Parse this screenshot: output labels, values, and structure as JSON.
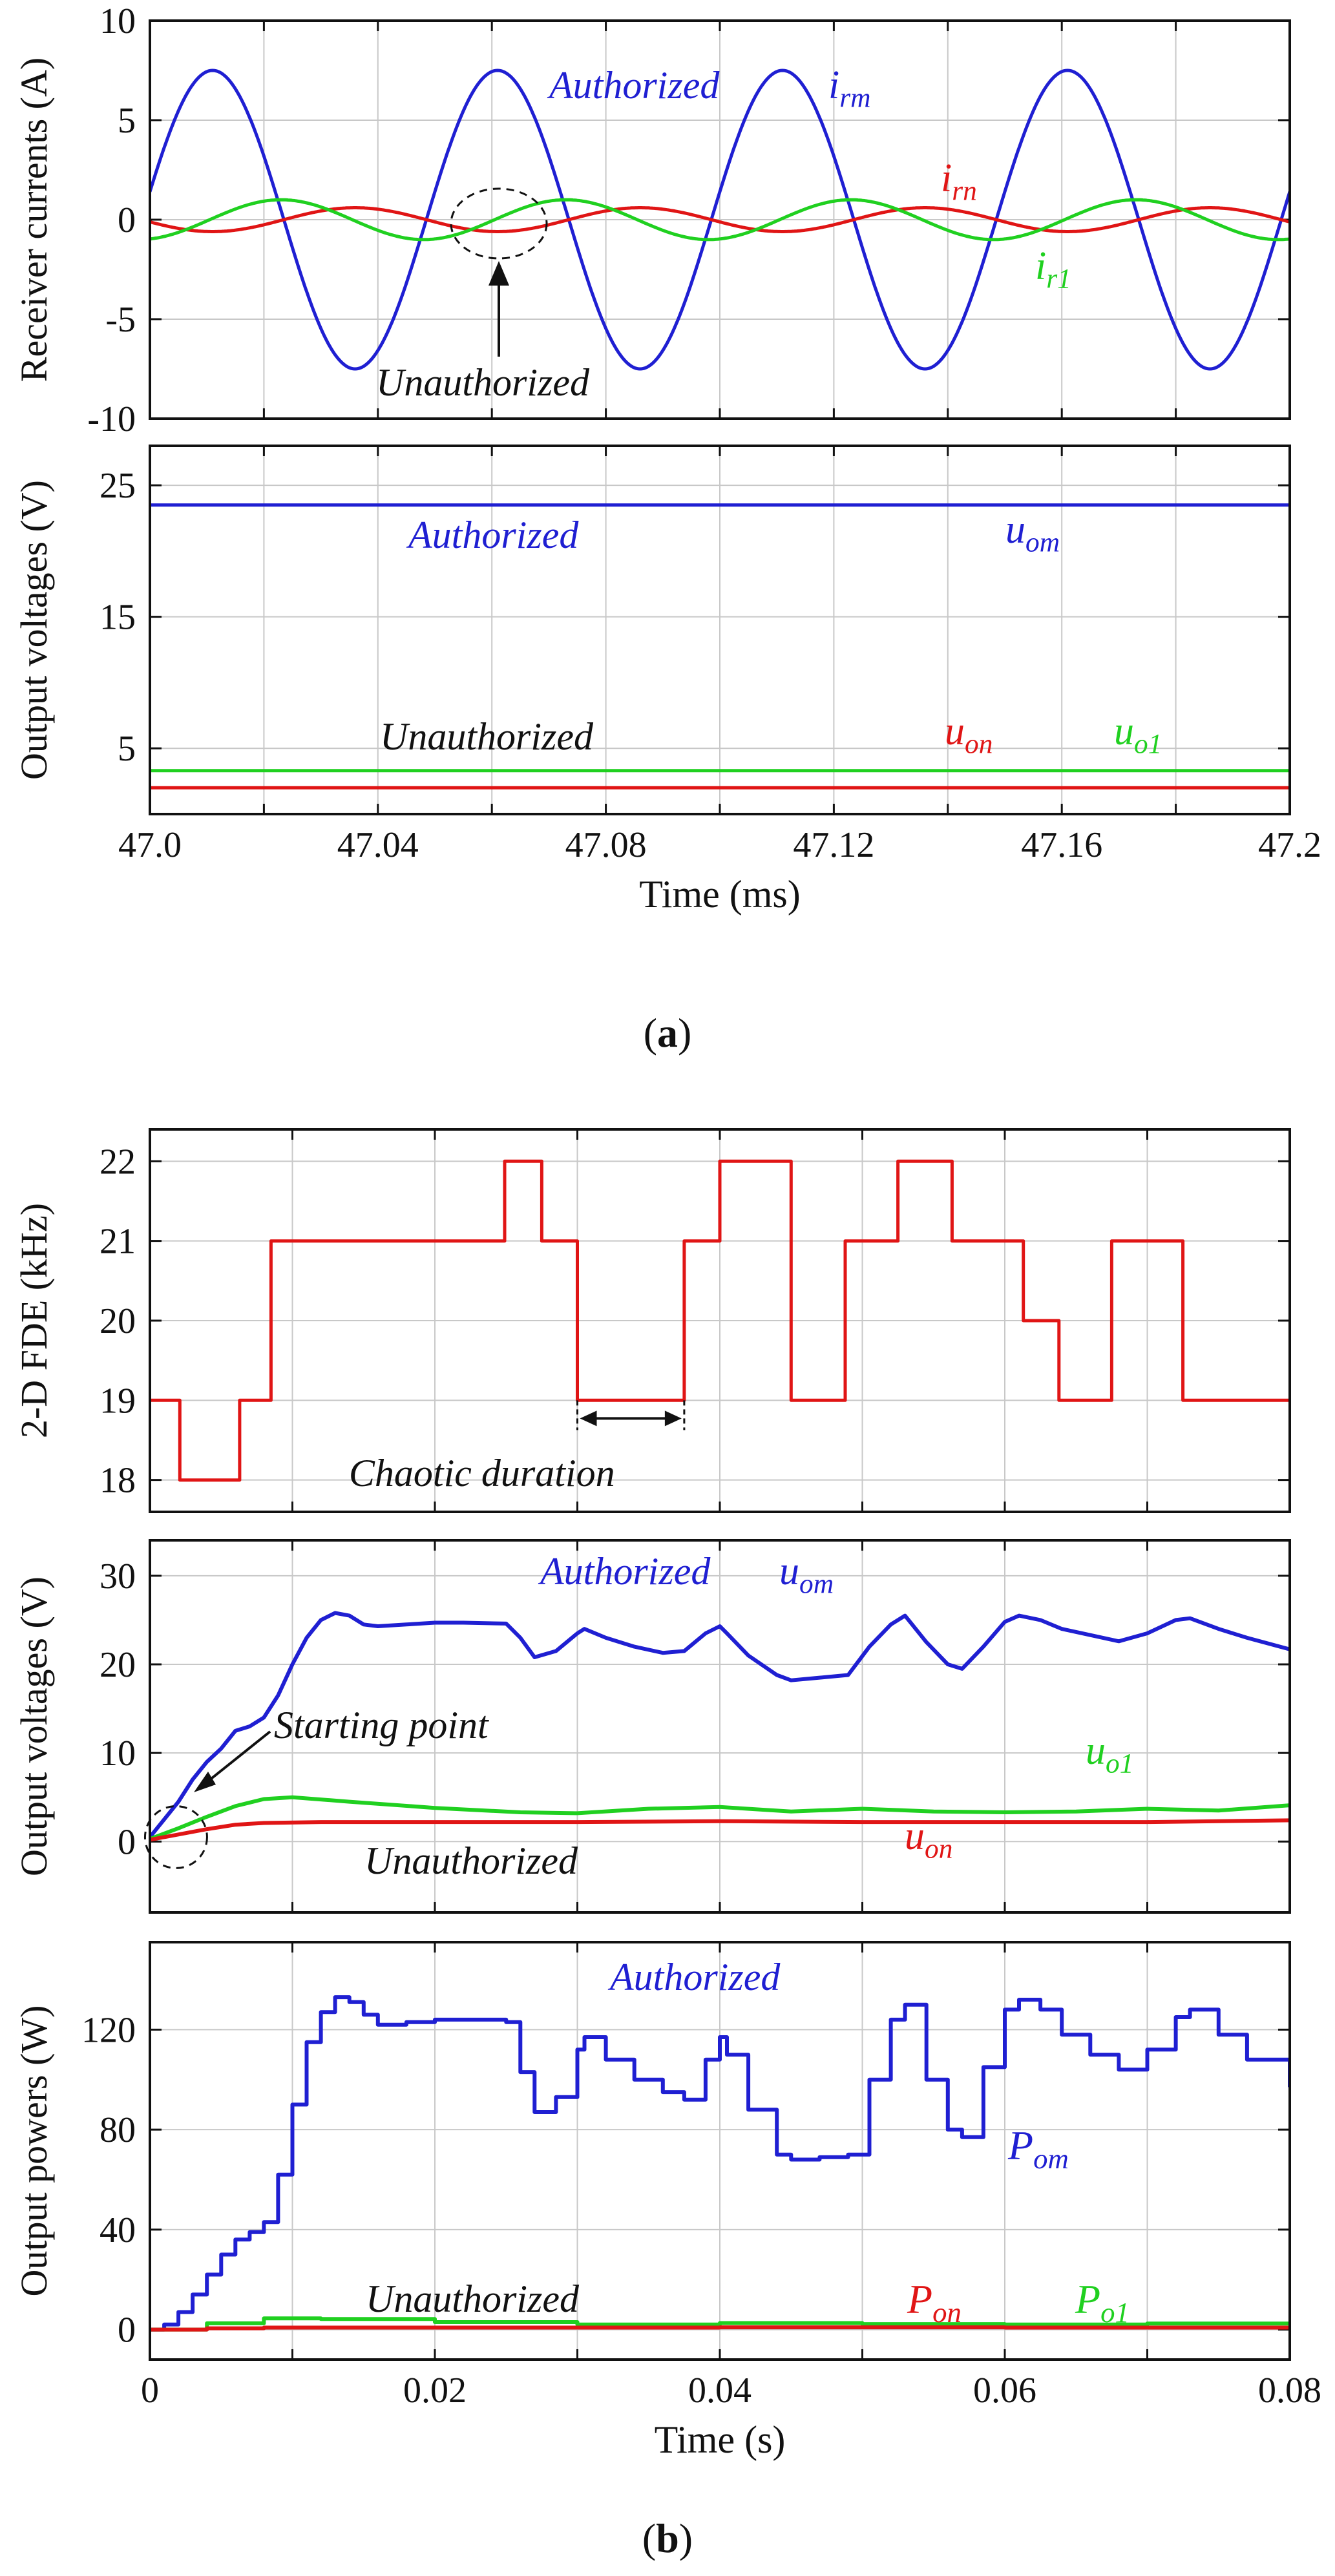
{
  "figure": {
    "label_a": "a",
    "label_b": "b"
  },
  "chart_data": [
    {
      "id": "a1",
      "type": "line",
      "ylabel": "Receiver currents (A)",
      "xlim": [
        47.0,
        47.2
      ],
      "ylim": [
        -10,
        10
      ],
      "yticks": [
        -10,
        -5,
        0,
        5,
        10
      ],
      "ytick_labels": [
        "-10",
        "-5",
        "0",
        "5",
        "10"
      ],
      "grid": true,
      "series": [
        {
          "name": "irm",
          "color": "#1f1fd2",
          "amplitude": 7.5,
          "period_ms": 0.05,
          "peak_at_ms": 47.011,
          "phase_deg": 0
        },
        {
          "name": "irn",
          "color": "#e01515",
          "amplitude": 0.6,
          "period_ms": 0.05,
          "peak_at_ms": 47.036,
          "phase_deg": 0
        },
        {
          "name": "ir1",
          "color": "#20d020",
          "amplitude": 1.0,
          "period_ms": 0.05,
          "peak_at_ms": 47.023,
          "phase_deg": 0
        }
      ],
      "annotations": {
        "authorized": "Authorized",
        "unauthorized": "Unauthorized"
      },
      "series_labels": [
        {
          "base": "i",
          "sub": "rm",
          "color": "#1f1fd2"
        },
        {
          "base": "i",
          "sub": "rn",
          "color": "#e01515"
        },
        {
          "base": "i",
          "sub": "r1",
          "color": "#20d020"
        }
      ]
    },
    {
      "id": "a2",
      "type": "line",
      "ylabel": "Output voltages (V)",
      "xlabel": "Time (ms)",
      "xlim": [
        47.0,
        47.2
      ],
      "xticks": [
        47.0,
        47.04,
        47.08,
        47.12,
        47.16,
        47.2
      ],
      "xtick_labels": [
        "47.0",
        "47.04",
        "47.08",
        "47.12",
        "47.16",
        "47.2"
      ],
      "ylim": [
        0,
        28
      ],
      "yticks": [
        5,
        15,
        25
      ],
      "ytick_labels": [
        "5",
        "15",
        "25"
      ],
      "grid": true,
      "series": [
        {
          "name": "uom",
          "color": "#1f1fd2",
          "value": 23.5
        },
        {
          "name": "uo1",
          "color": "#20d020",
          "value": 3.3
        },
        {
          "name": "uon",
          "color": "#e01515",
          "value": 2.0
        }
      ],
      "annotations": {
        "authorized": "Authorized",
        "unauthorized": "Unauthorized"
      },
      "series_labels": [
        {
          "base": "u",
          "sub": "om",
          "color": "#1f1fd2"
        },
        {
          "base": "u",
          "sub": "on",
          "color": "#e01515"
        },
        {
          "base": "u",
          "sub": "o1",
          "color": "#20d020"
        }
      ]
    },
    {
      "id": "b1",
      "type": "line",
      "ylabel": "2-D FDE (kHz)",
      "xlim": [
        0,
        0.08
      ],
      "ylim": [
        17.6,
        22.4
      ],
      "yticks": [
        18,
        19,
        20,
        21,
        22
      ],
      "ytick_labels": [
        "18",
        "19",
        "20",
        "21",
        "22"
      ],
      "grid": true,
      "series": [
        {
          "name": "FDE",
          "color": "#e01515",
          "step_x": [
            0,
            0.0021,
            0.0063,
            0.0085,
            0.0249,
            0.0275,
            0.03,
            0.0375,
            0.04,
            0.045,
            0.0488,
            0.0525,
            0.0563,
            0.0613,
            0.0638,
            0.0675,
            0.0725,
            0.08
          ],
          "step_y": [
            19,
            18,
            19,
            21,
            22,
            21,
            19,
            21,
            22,
            19,
            21,
            22,
            21,
            20,
            19,
            21,
            19
          ]
        }
      ],
      "annotations": {
        "chaotic_duration": "Chaotic duration",
        "chaotic_from": 0.03,
        "chaotic_to": 0.0375
      }
    },
    {
      "id": "b2",
      "type": "line",
      "ylabel": "Output voltages (V)",
      "xlim": [
        0,
        0.08
      ],
      "ylim": [
        -8,
        34
      ],
      "yticks": [
        0,
        10,
        20,
        30
      ],
      "ytick_labels": [
        "0",
        "10",
        "20",
        "30"
      ],
      "grid": true,
      "series": [
        {
          "name": "uom",
          "color": "#1f1fd2",
          "x": [
            0,
            0.001,
            0.002,
            0.003,
            0.004,
            0.005,
            0.006,
            0.007,
            0.008,
            0.009,
            0.01,
            0.011,
            0.012,
            0.013,
            0.014,
            0.015,
            0.016,
            0.018,
            0.02,
            0.022,
            0.025,
            0.026,
            0.027,
            0.0285,
            0.03,
            0.0305,
            0.032,
            0.034,
            0.036,
            0.0375,
            0.039,
            0.04,
            0.0405,
            0.042,
            0.044,
            0.045,
            0.047,
            0.049,
            0.0505,
            0.052,
            0.053,
            0.0545,
            0.056,
            0.057,
            0.0585,
            0.06,
            0.061,
            0.0625,
            0.064,
            0.066,
            0.068,
            0.07,
            0.072,
            0.073,
            0.075,
            0.077,
            0.08
          ],
          "y": [
            0.5,
            2.5,
            4.5,
            7.0,
            9.0,
            10.5,
            12.5,
            13.0,
            14.0,
            16.5,
            20.0,
            23.0,
            25.0,
            25.8,
            25.5,
            24.5,
            24.3,
            24.5,
            24.7,
            24.7,
            24.6,
            23.0,
            20.8,
            21.5,
            23.5,
            24.0,
            23.0,
            22.0,
            21.3,
            21.5,
            23.5,
            24.3,
            23.5,
            21.0,
            18.8,
            18.2,
            18.5,
            18.8,
            22.0,
            24.5,
            25.5,
            22.5,
            20.0,
            19.5,
            22.0,
            24.8,
            25.5,
            25.0,
            24.0,
            23.3,
            22.6,
            23.5,
            25.0,
            25.2,
            24.0,
            23.0,
            21.7
          ]
        },
        {
          "name": "uo1",
          "color": "#20d020",
          "x": [
            0,
            0.002,
            0.004,
            0.006,
            0.008,
            0.01,
            0.014,
            0.02,
            0.026,
            0.03,
            0.035,
            0.04,
            0.045,
            0.05,
            0.055,
            0.06,
            0.065,
            0.07,
            0.075,
            0.08
          ],
          "y": [
            0.3,
            1.5,
            2.8,
            4.0,
            4.8,
            5.0,
            4.5,
            3.8,
            3.3,
            3.2,
            3.7,
            3.9,
            3.4,
            3.7,
            3.4,
            3.3,
            3.4,
            3.7,
            3.5,
            4.1
          ]
        },
        {
          "name": "uon",
          "color": "#e01515",
          "x": [
            0,
            0.002,
            0.004,
            0.006,
            0.008,
            0.012,
            0.02,
            0.03,
            0.04,
            0.05,
            0.06,
            0.07,
            0.08
          ],
          "y": [
            0.2,
            0.8,
            1.4,
            1.9,
            2.1,
            2.2,
            2.2,
            2.2,
            2.3,
            2.2,
            2.2,
            2.2,
            2.4
          ]
        }
      ],
      "annotations": {
        "authorized": "Authorized",
        "unauthorized": "Unauthorized",
        "starting_point": "Starting point"
      },
      "series_labels": [
        {
          "base": "u",
          "sub": "om",
          "color": "#1f1fd2"
        },
        {
          "base": "u",
          "sub": "o1",
          "color": "#20d020"
        },
        {
          "base": "u",
          "sub": "on",
          "color": "#e01515"
        }
      ]
    },
    {
      "id": "b3",
      "type": "line",
      "ylabel": "Output powers (W)",
      "xlabel": "Time (s)",
      "xlim": [
        0,
        0.08
      ],
      "xticks": [
        0,
        0.02,
        0.04,
        0.06,
        0.08
      ],
      "xtick_labels": [
        "0",
        "0.02",
        "0.04",
        "0.06",
        "0.08"
      ],
      "ylim": [
        -12,
        155
      ],
      "yticks": [
        0,
        40,
        80,
        120
      ],
      "ytick_labels": [
        "0",
        "40",
        "80",
        "120"
      ],
      "grid": true,
      "series": [
        {
          "name": "Pom",
          "color": "#1f1fd2",
          "x": [
            0,
            0.001,
            0.002,
            0.003,
            0.004,
            0.005,
            0.006,
            0.007,
            0.008,
            0.009,
            0.01,
            0.011,
            0.012,
            0.013,
            0.014,
            0.015,
            0.016,
            0.018,
            0.02,
            0.022,
            0.025,
            0.026,
            0.027,
            0.0285,
            0.03,
            0.0305,
            0.032,
            0.034,
            0.036,
            0.0375,
            0.039,
            0.04,
            0.0405,
            0.042,
            0.044,
            0.045,
            0.047,
            0.049,
            0.0505,
            0.052,
            0.053,
            0.0545,
            0.056,
            0.057,
            0.0585,
            0.06,
            0.061,
            0.0625,
            0.064,
            0.066,
            0.068,
            0.07,
            0.072,
            0.073,
            0.075,
            0.077,
            0.08
          ],
          "y": [
            0,
            2,
            7,
            14,
            22,
            30,
            36,
            39,
            43,
            62,
            90,
            115,
            127,
            133,
            131,
            126,
            122,
            123,
            124,
            124,
            123,
            103,
            87,
            93,
            112,
            117,
            108,
            100,
            95,
            92,
            108,
            117,
            110,
            88,
            70,
            68,
            69,
            70,
            100,
            124,
            130,
            100,
            80,
            77,
            105,
            128,
            132,
            128,
            118,
            110,
            104,
            112,
            125,
            128,
            118,
            108,
            97
          ]
        },
        {
          "name": "Po1",
          "color": "#20d020",
          "x": [
            0,
            0.004,
            0.008,
            0.012,
            0.02,
            0.03,
            0.04,
            0.05,
            0.06,
            0.07,
            0.08
          ],
          "y": [
            0,
            2.5,
            4.5,
            4.2,
            3.0,
            2.0,
            2.6,
            2.2,
            2.0,
            2.4,
            3.0
          ]
        },
        {
          "name": "Pon",
          "color": "#e01515",
          "x": [
            0,
            0.004,
            0.008,
            0.02,
            0.04,
            0.06,
            0.08
          ],
          "y": [
            0,
            0.5,
            0.8,
            0.8,
            0.9,
            0.8,
            1.0
          ]
        }
      ],
      "annotations": {
        "authorized": "Authorized",
        "unauthorized": "Unauthorized"
      },
      "series_labels": [
        {
          "base": "P",
          "sub": "om",
          "color": "#1f1fd2"
        },
        {
          "base": "P",
          "sub": "on",
          "color": "#e01515"
        },
        {
          "base": "P",
          "sub": "o1",
          "color": "#20d020"
        }
      ]
    }
  ]
}
